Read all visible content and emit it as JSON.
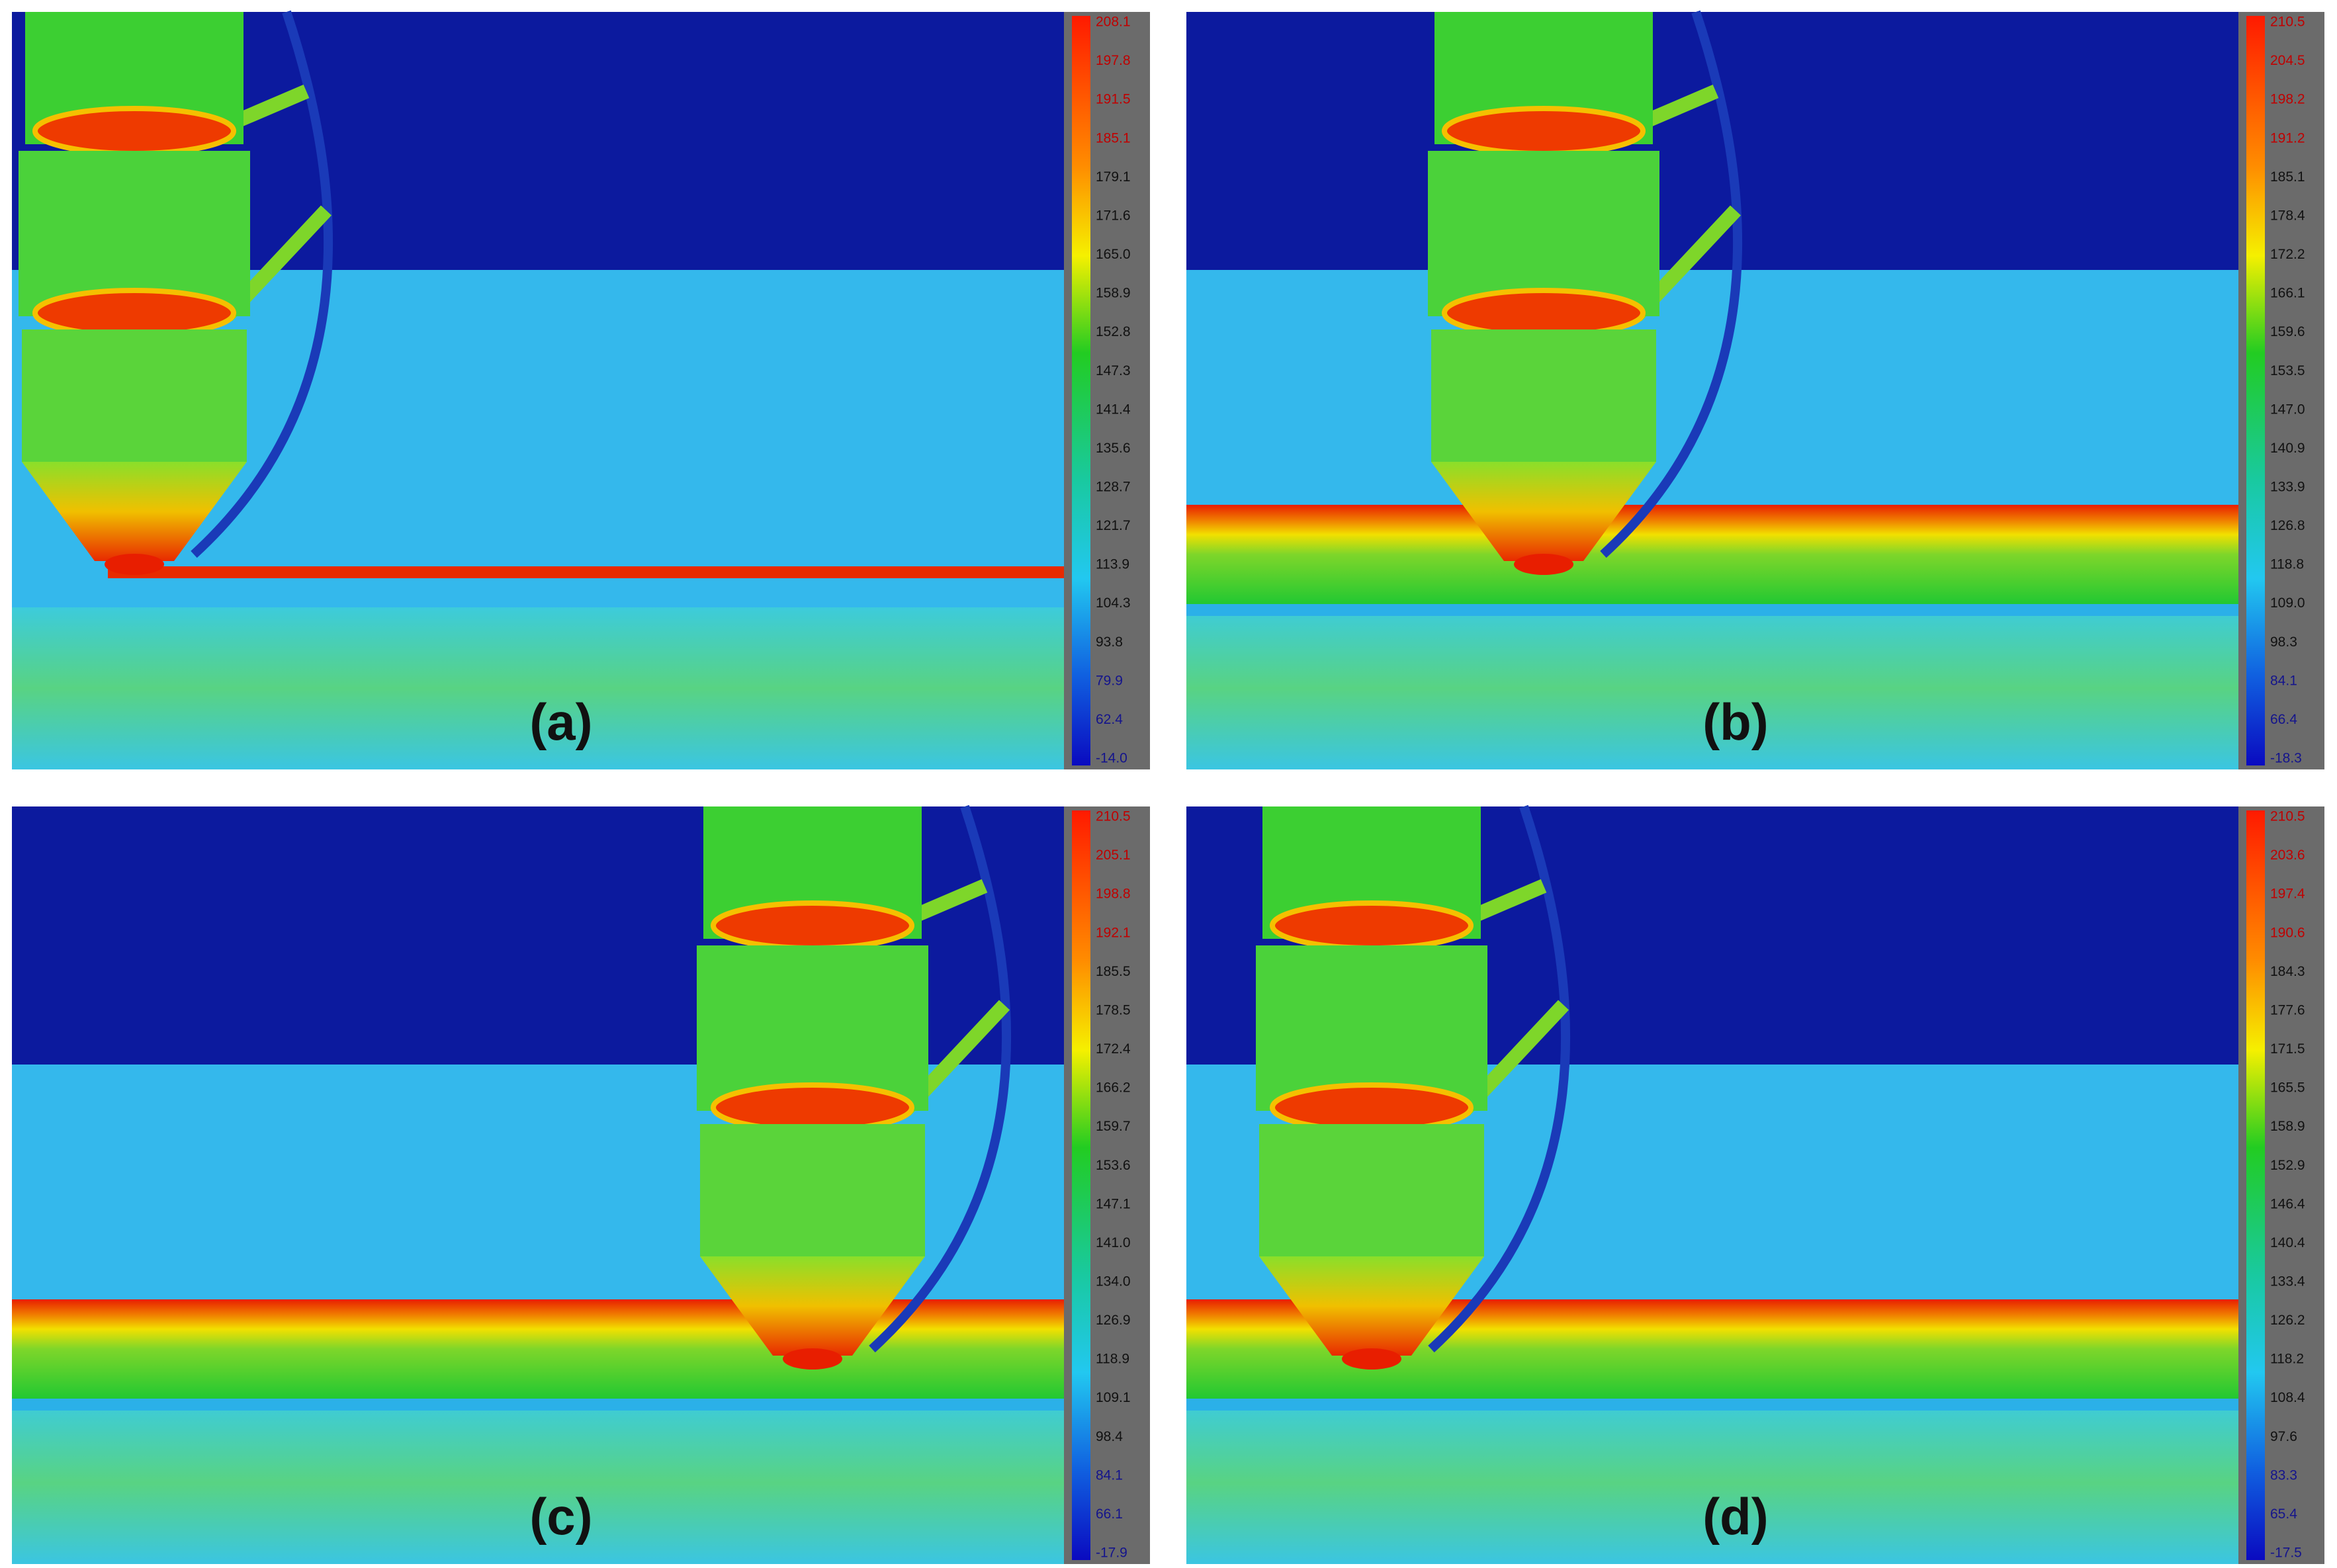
{
  "panels": [
    {
      "label": "(a)",
      "scale": [
        "208.1",
        "197.8",
        "191.5",
        "185.1",
        "179.1",
        "171.6",
        "165.0",
        "158.9",
        "152.8",
        "147.3",
        "141.4",
        "135.6",
        "128.7",
        "121.7",
        "113.9",
        "104.3",
        "93.8",
        "79.9",
        "62.4",
        "-14.0"
      ]
    },
    {
      "label": "(b)",
      "scale": [
        "210.5",
        "204.5",
        "198.2",
        "191.2",
        "185.1",
        "178.4",
        "172.2",
        "166.1",
        "159.6",
        "153.5",
        "147.0",
        "140.9",
        "133.9",
        "126.8",
        "118.8",
        "109.0",
        "98.3",
        "84.1",
        "66.4",
        "-18.3"
      ]
    },
    {
      "label": "(c)",
      "scale": [
        "210.5",
        "205.1",
        "198.8",
        "192.1",
        "185.5",
        "178.5",
        "172.4",
        "166.2",
        "159.7",
        "153.6",
        "147.1",
        "141.0",
        "134.0",
        "126.9",
        "118.9",
        "109.1",
        "98.4",
        "84.1",
        "66.1",
        "-17.9"
      ]
    },
    {
      "label": "(d)",
      "scale": [
        "210.5",
        "203.6",
        "197.4",
        "190.6",
        "184.3",
        "177.6",
        "171.5",
        "165.5",
        "158.9",
        "152.9",
        "146.4",
        "140.4",
        "133.4",
        "126.2",
        "118.2",
        "108.4",
        "97.6",
        "83.3",
        "65.4",
        "-17.5"
      ]
    }
  ]
}
